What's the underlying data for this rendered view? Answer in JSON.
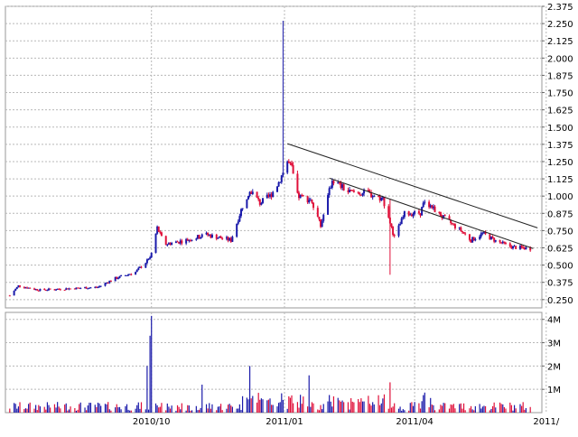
{
  "chart_data": [
    {
      "type": "candlestick",
      "panel": "price",
      "y_axis_side": "right",
      "ylim": [
        0.19,
        2.375
      ],
      "y_ticks": [
        0.25,
        0.375,
        0.5,
        0.625,
        0.75,
        0.875,
        1.0,
        1.125,
        1.25,
        1.375,
        1.5,
        1.625,
        1.75,
        1.875,
        2.0,
        2.125,
        2.25,
        2.375
      ],
      "y_tick_labels": [
        "0.250",
        "0.375",
        "0.500",
        "0.625",
        "0.750",
        "0.875",
        "1.000",
        "1.125",
        "1.250",
        "1.375",
        "1.500",
        "1.625",
        "1.750",
        "1.875",
        "2.000",
        "2.125",
        "2.250",
        "2.375"
      ],
      "grid": true,
      "up_color": "#1a1aaa",
      "down_color": "#e0103a",
      "close_anchor_points": [
        {
          "x": "2010-06-25",
          "close": 0.28
        },
        {
          "x": "2010-07-01",
          "close": 0.35
        },
        {
          "x": "2010-07-15",
          "close": 0.32
        },
        {
          "x": "2010-08-05",
          "close": 0.33
        },
        {
          "x": "2010-08-25",
          "close": 0.34
        },
        {
          "x": "2010-09-05",
          "close": 0.4
        },
        {
          "x": "2010-09-20",
          "close": 0.45
        },
        {
          "x": "2010-09-30",
          "close": 0.55
        },
        {
          "x": "2010-10-05",
          "close": 0.77
        },
        {
          "x": "2010-10-10",
          "close": 0.65
        },
        {
          "x": "2010-10-25",
          "close": 0.68
        },
        {
          "x": "2010-11-08",
          "close": 0.72
        },
        {
          "x": "2010-11-25",
          "close": 0.68
        },
        {
          "x": "2010-12-03",
          "close": 0.93
        },
        {
          "x": "2010-12-08",
          "close": 1.05
        },
        {
          "x": "2010-12-15",
          "close": 0.95
        },
        {
          "x": "2010-12-22",
          "close": 1.0
        },
        {
          "x": "2010-12-28",
          "close": 1.1
        },
        {
          "x": "2011-01-03",
          "close": 1.25
        },
        {
          "x": "2011-01-06",
          "close": 1.2
        },
        {
          "x": "2011-01-10",
          "close": 1.0
        },
        {
          "x": "2011-01-20",
          "close": 0.97
        },
        {
          "x": "2011-01-26",
          "close": 0.78
        },
        {
          "x": "2011-02-03",
          "close": 1.12
        },
        {
          "x": "2011-02-14",
          "close": 1.03
        },
        {
          "x": "2011-02-28",
          "close": 1.02
        },
        {
          "x": "2011-03-10",
          "close": 0.98
        },
        {
          "x": "2011-03-14",
          "close": 0.85
        },
        {
          "x": "2011-03-18",
          "close": 0.7
        },
        {
          "x": "2011-03-25",
          "close": 0.87
        },
        {
          "x": "2011-04-05",
          "close": 0.88
        },
        {
          "x": "2011-04-08",
          "close": 0.97
        },
        {
          "x": "2011-04-20",
          "close": 0.85
        },
        {
          "x": "2011-05-03",
          "close": 0.75
        },
        {
          "x": "2011-05-10",
          "close": 0.68
        },
        {
          "x": "2011-05-18",
          "close": 0.73
        },
        {
          "x": "2011-05-28",
          "close": 0.67
        },
        {
          "x": "2011-06-08",
          "close": 0.63
        },
        {
          "x": "2011-06-20",
          "close": 0.62
        }
      ],
      "spikes": [
        {
          "x": "2010-12-31",
          "high": 2.27,
          "low": 1.18
        },
        {
          "x": "2011-03-15",
          "high": 0.98,
          "low": 0.43
        }
      ],
      "trendlines": [
        {
          "from": {
            "x": "2011-01-03",
            "close": 1.38
          },
          "to": {
            "x": "2011-06-25",
            "close": 0.77
          }
        },
        {
          "from": {
            "x": "2011-02-01",
            "close": 1.13
          },
          "to": {
            "x": "2011-06-22",
            "close": 0.62
          }
        }
      ]
    },
    {
      "type": "bar",
      "panel": "volume",
      "y_axis_side": "right",
      "ylim": [
        0,
        4300000
      ],
      "y_ticks": [
        1000000,
        2000000,
        3000000,
        4000000
      ],
      "y_tick_labels": [
        "1M",
        "2M",
        "3M",
        "4M"
      ],
      "grid": true,
      "spikes": [
        {
          "x": "2010-10-01",
          "volume": 4150000
        },
        {
          "x": "2010-09-30",
          "volume": 3300000
        },
        {
          "x": "2010-09-28",
          "volume": 2000000
        },
        {
          "x": "2010-12-08",
          "volume": 2000000
        },
        {
          "x": "2011-01-18",
          "volume": 1600000
        },
        {
          "x": "2011-03-15",
          "volume": 1300000
        },
        {
          "x": "2010-11-05",
          "volume": 1200000
        }
      ]
    }
  ],
  "x_axis": {
    "ticks": [
      {
        "x": "2010-10-01",
        "label": "2010/10"
      },
      {
        "x": "2011-01-01",
        "label": "2011/01"
      },
      {
        "x": "2011-04-01",
        "label": "2011/04"
      },
      {
        "x": "2011-07-01",
        "label": "2011/"
      }
    ]
  }
}
